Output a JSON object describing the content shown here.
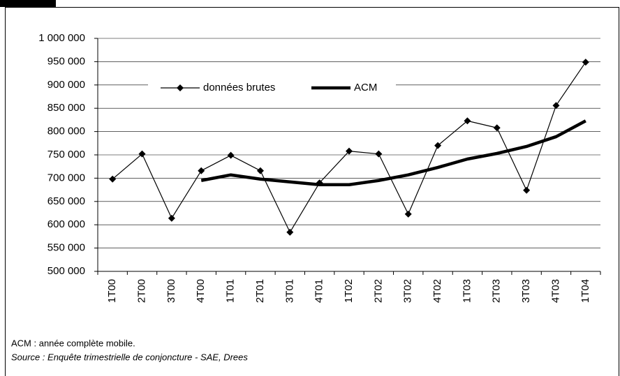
{
  "chart_data": {
    "type": "line",
    "categories": [
      "1T00",
      "2T00",
      "3T00",
      "4T00",
      "1T01",
      "2T01",
      "3T01",
      "4T01",
      "1T02",
      "2T02",
      "3T02",
      "4T02",
      "1T03",
      "2T03",
      "3T03",
      "4T03",
      "1T04"
    ],
    "series": [
      {
        "name": "données brutes",
        "color": "#000000",
        "marker": "diamond",
        "values": [
          698000,
          752000,
          614000,
          716000,
          749000,
          716000,
          584000,
          690000,
          758000,
          752000,
          623000,
          770000,
          823000,
          808000,
          674000,
          856000,
          949000
        ]
      },
      {
        "name": "ACM",
        "color": "#000000",
        "values": [
          null,
          null,
          null,
          695000,
          707000,
          698000,
          692000,
          686000,
          686000,
          695000,
          707000,
          723000,
          741000,
          753000,
          768000,
          789000,
          823000
        ]
      }
    ],
    "ylim": [
      500000,
      1000000
    ],
    "yticks": [
      {
        "value": 500000,
        "label": "500 000"
      },
      {
        "value": 550000,
        "label": "550 000"
      },
      {
        "value": 600000,
        "label": "600 000"
      },
      {
        "value": 650000,
        "label": "650 000"
      },
      {
        "value": 700000,
        "label": "700 000"
      },
      {
        "value": 750000,
        "label": "750 000"
      },
      {
        "value": 800000,
        "label": "800 000"
      },
      {
        "value": 850000,
        "label": "850 000"
      },
      {
        "value": 900000,
        "label": "900 000"
      },
      {
        "value": 950000,
        "label": "950 000"
      },
      {
        "value": 1000000,
        "label": "1 000 000"
      }
    ],
    "grid": true,
    "legend": "top",
    "notes": [
      "ACM : année complète mobile.",
      "Source : Enquête trimestrielle de conjoncture - SAE, Drees"
    ]
  }
}
